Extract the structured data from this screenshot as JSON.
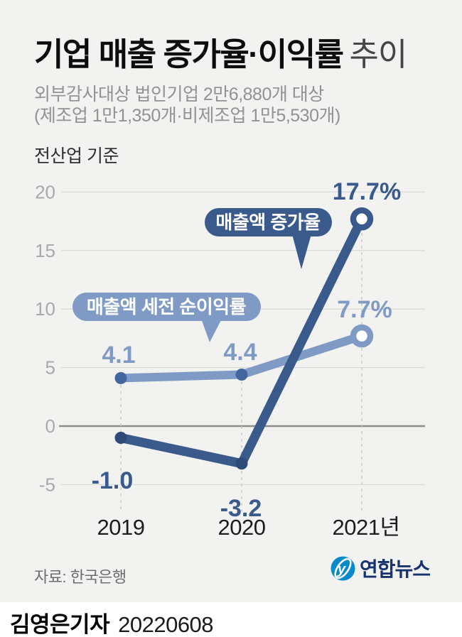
{
  "header": {
    "title_main": "기업 매출 증가율·이익률",
    "title_suffix": "추이",
    "subtitle_line1": "외부감사대상 법인기업 2만6,880개 대상",
    "subtitle_line2": "(제조업 1만1,350개·비제조업 1만5,530개)",
    "scope_note": "전산업 기준"
  },
  "chart_data": {
    "type": "line",
    "title": "기업 매출 증가율·이익률 추이",
    "categories": [
      "2019",
      "2020",
      "2021년"
    ],
    "y_ticks": [
      20,
      15,
      10,
      5,
      0,
      -5
    ],
    "ylim": [
      -7,
      22
    ],
    "grid": true,
    "unit": "%",
    "legend_style": "callout-bubbles",
    "series": [
      {
        "name": "매출액 증가율",
        "values": [
          -1.0,
          -3.2,
          17.7
        ],
        "labels": [
          "-1.0",
          "-3.2",
          "17.7%"
        ],
        "color": "#3a5a8c",
        "dot_color": "#2d4a78"
      },
      {
        "name": "매출액 세전 순이익률",
        "values": [
          4.1,
          4.4,
          7.7
        ],
        "labels": [
          "4.1",
          "4.4",
          "7.7%"
        ],
        "color": "#7f9bc5",
        "dot_color": "#44669f"
      }
    ]
  },
  "footer": {
    "source": "자료: 한국은행",
    "agency_name": "연합뉴스",
    "byline": "김영은기자",
    "date": "20220608"
  },
  "colors": {
    "background": "#f2f2f0",
    "accent_dark": "#3a5a8c",
    "accent_light": "#7f9bc5",
    "agency_blue": "#0a8acb",
    "agency_navy": "#16336e"
  }
}
